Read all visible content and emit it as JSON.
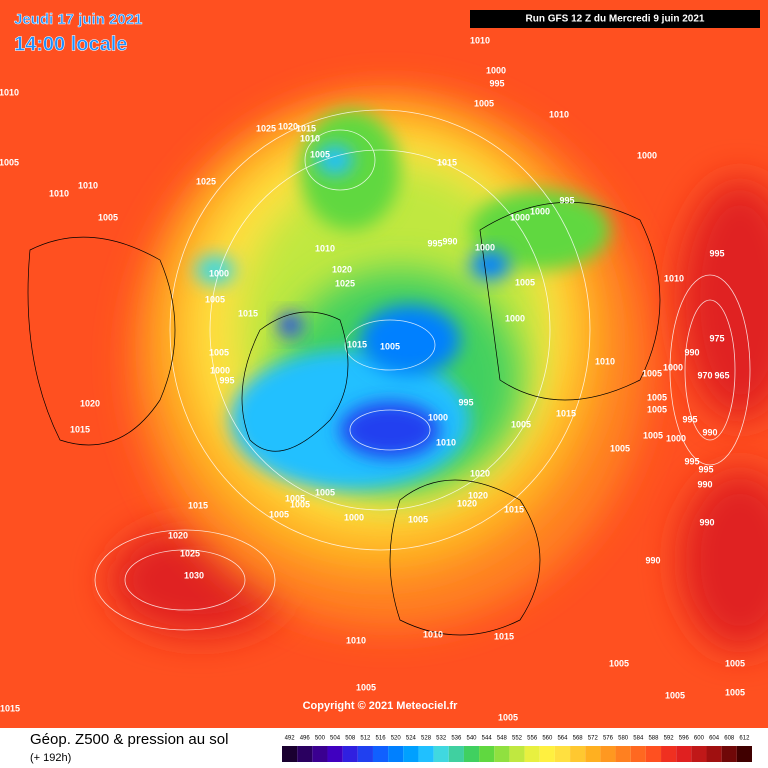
{
  "header": {
    "date": "Jeudi 17 juin 2021",
    "time": "14:00 locale",
    "run": "Run GFS 12 Z du Mercredi 9 juin 2021"
  },
  "copyright": "Copyright © 2021 Meteociel.fr",
  "legend": {
    "title": "Géop. Z500 & pression au sol",
    "subtitle": "(+ 192h)",
    "ticks": [
      492,
      496,
      500,
      504,
      508,
      512,
      516,
      520,
      524,
      528,
      532,
      536,
      540,
      544,
      548,
      552,
      556,
      560,
      564,
      568,
      572,
      576,
      580,
      584,
      588,
      592,
      596,
      600,
      604,
      608,
      612
    ],
    "colors": [
      "#1a0030",
      "#2a0060",
      "#3a0090",
      "#4000c0",
      "#3020e0",
      "#2040f0",
      "#1060ff",
      "#0080ff",
      "#00a0ff",
      "#20c0ff",
      "#40d8e0",
      "#40d0a0",
      "#40d060",
      "#60d840",
      "#90e040",
      "#c0e840",
      "#e8f040",
      "#fff040",
      "#ffe040",
      "#ffc830",
      "#ffb020",
      "#ff9820",
      "#ff8020",
      "#ff6820",
      "#ff5020",
      "#f03020",
      "#e02020",
      "#c01818",
      "#a01010",
      "#700808",
      "#400000"
    ]
  },
  "isobar_labels": [
    "1010",
    "1000",
    "995",
    "1005",
    "1010",
    "1005",
    "1025",
    "1020",
    "1015",
    "1010",
    "1005",
    "1010",
    "1000",
    "1015",
    "1025",
    "1010",
    "1010",
    "1005",
    "1000",
    "995",
    "1000",
    "1010",
    "995",
    "990",
    "1000",
    "1020",
    "1025",
    "1000",
    "1005",
    "1015",
    "1005",
    "1000",
    "1010",
    "995",
    "1015",
    "1005",
    "1005",
    "1000",
    "995",
    "1010",
    "1005",
    "1000",
    "975",
    "990",
    "970",
    "965",
    "1020",
    "1015",
    "995",
    "1015",
    "1000",
    "1005",
    "1005",
    "1005",
    "995",
    "1005",
    "1000",
    "990",
    "1010",
    "1005",
    "995",
    "995",
    "1020",
    "990",
    "1020",
    "1020",
    "1015",
    "1015",
    "1005",
    "1005",
    "1005",
    "1005",
    "1000",
    "1005",
    "990",
    "1020",
    "1025",
    "1030",
    "990",
    "1010",
    "1010",
    "1015",
    "1005",
    "1005",
    "1005",
    "1005",
    "1005",
    "1015",
    "1005"
  ]
}
